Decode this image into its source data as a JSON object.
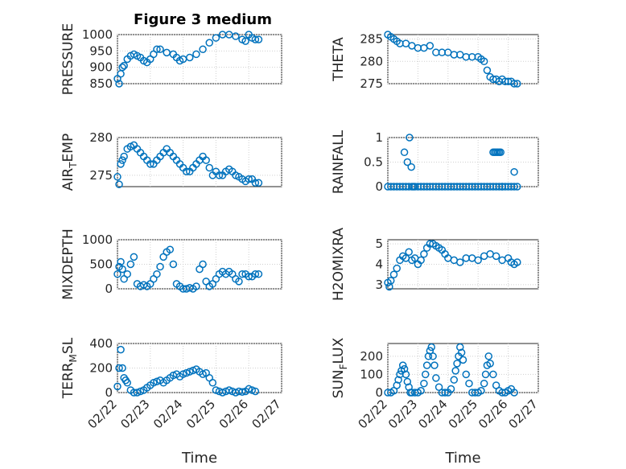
{
  "figure": {
    "title": "Figure 3 medium"
  },
  "colors": {
    "marker": "#0072BD",
    "axis": "#262626",
    "grid": "#cfcfcf"
  },
  "chart_data": [
    {
      "id": "pressure",
      "type": "scatter",
      "ylabel": "PRESSURE",
      "ylim": [
        850,
        1000
      ],
      "yticks": [
        850,
        900,
        950,
        1000
      ],
      "xlim": [
        0,
        5
      ],
      "x_ticks": [],
      "xlabel": "",
      "x": [
        0,
        0.05,
        0.1,
        0.15,
        0.2,
        0.3,
        0.4,
        0.5,
        0.6,
        0.7,
        0.8,
        0.9,
        1.0,
        1.1,
        1.2,
        1.3,
        1.5,
        1.7,
        1.8,
        1.9,
        2.0,
        2.2,
        2.4,
        2.6,
        2.8,
        3.0,
        3.2,
        3.4,
        3.6,
        3.8,
        3.9,
        4.0,
        4.1,
        4.2,
        4.3
      ],
      "y": [
        865,
        850,
        880,
        900,
        905,
        925,
        935,
        940,
        935,
        930,
        920,
        915,
        925,
        940,
        955,
        955,
        945,
        940,
        930,
        920,
        925,
        930,
        940,
        955,
        975,
        990,
        1000,
        1000,
        995,
        985,
        980,
        1000,
        990,
        985,
        985
      ]
    },
    {
      "id": "theta",
      "type": "scatter",
      "ylabel": "THETA",
      "ylim": [
        275,
        286
      ],
      "yticks": [
        275,
        280,
        285
      ],
      "xlim": [
        0,
        5
      ],
      "x_ticks": [],
      "xlabel": "",
      "x": [
        0,
        0.1,
        0.2,
        0.3,
        0.4,
        0.6,
        0.8,
        1.0,
        1.2,
        1.4,
        1.6,
        1.8,
        2.0,
        2.2,
        2.4,
        2.6,
        2.8,
        3.0,
        3.1,
        3.2,
        3.3,
        3.4,
        3.5,
        3.6,
        3.7,
        3.8,
        3.9,
        4.0,
        4.1,
        4.2,
        4.3
      ],
      "y": [
        286,
        285.5,
        285,
        284.5,
        284,
        284,
        283.5,
        283,
        283,
        283.5,
        282,
        282,
        282,
        281.5,
        281.5,
        281,
        281,
        281,
        280.5,
        280,
        278,
        276.5,
        276,
        276,
        275.5,
        276,
        275.5,
        275.5,
        275.5,
        275,
        275
      ]
    },
    {
      "id": "air_temp",
      "type": "scatter",
      "ylabel_main": "AIR",
      "ylabel_sub": "T",
      "ylabel_rest": "EMP",
      "ylim": [
        273.5,
        280
      ],
      "yticks": [
        275,
        280
      ],
      "xlim": [
        0,
        5
      ],
      "x_ticks": [],
      "xlabel": "",
      "x": [
        0,
        0.05,
        0.1,
        0.15,
        0.2,
        0.3,
        0.4,
        0.5,
        0.6,
        0.7,
        0.8,
        0.9,
        1.0,
        1.1,
        1.2,
        1.3,
        1.4,
        1.5,
        1.6,
        1.7,
        1.8,
        1.9,
        2.0,
        2.1,
        2.2,
        2.3,
        2.4,
        2.5,
        2.6,
        2.7,
        2.8,
        2.9,
        3.0,
        3.1,
        3.2,
        3.3,
        3.4,
        3.5,
        3.6,
        3.7,
        3.8,
        3.9,
        4.0,
        4.1,
        4.2,
        4.3
      ],
      "y": [
        274.8,
        273.8,
        276.5,
        277,
        277.5,
        278.5,
        278.8,
        279,
        278.5,
        278,
        277.5,
        277,
        276.5,
        276.5,
        277,
        277.5,
        278,
        278.5,
        278,
        277.5,
        277,
        276.5,
        276,
        275.5,
        275.5,
        276,
        276.5,
        277,
        277.5,
        277,
        276,
        275,
        275.5,
        275,
        275,
        275.5,
        275.8,
        275.5,
        275,
        274.8,
        274.5,
        274.2,
        274.5,
        274.5,
        274,
        274
      ]
    },
    {
      "id": "rainfall",
      "type": "scatter",
      "ylabel": "RAINFALL",
      "ylim": [
        0,
        1
      ],
      "yticks": [
        0,
        0.5,
        1
      ],
      "ytick_labels": [
        "0",
        "0.5",
        "1"
      ],
      "xlim": [
        0,
        5
      ],
      "x_ticks": [],
      "xlabel": "",
      "x": [
        0,
        0.1,
        0.2,
        0.3,
        0.4,
        0.5,
        0.6,
        0.7,
        0.8,
        0.9,
        1.0,
        1.1,
        1.2,
        1.3,
        1.4,
        1.5,
        1.6,
        1.7,
        1.8,
        1.9,
        2.0,
        2.1,
        2.2,
        2.3,
        2.4,
        2.5,
        2.6,
        2.7,
        2.8,
        2.9,
        3.0,
        3.1,
        3.2,
        3.3,
        3.4,
        3.5,
        3.6,
        3.7,
        3.8,
        3.9,
        4.0,
        4.1,
        4.2,
        4.3,
        0.55,
        0.65,
        0.72,
        0.78,
        0.85,
        3.5,
        3.55,
        3.6,
        3.65,
        3.7,
        3.75,
        3.8,
        4.2
      ],
      "y": [
        0,
        0,
        0,
        0,
        0,
        0,
        0,
        0,
        0,
        0,
        0,
        0,
        0,
        0,
        0,
        0,
        0,
        0,
        0,
        0,
        0,
        0,
        0,
        0,
        0,
        0,
        0,
        0,
        0,
        0,
        0,
        0,
        0,
        0,
        0,
        0,
        0,
        0,
        0,
        0,
        0,
        0,
        0,
        0,
        0.7,
        0.5,
        1.0,
        0.4,
        0,
        0.7,
        0.7,
        0.7,
        0.7,
        0.7,
        0.7,
        0,
        0.3
      ]
    },
    {
      "id": "mixdepth",
      "type": "scatter",
      "ylabel": "MIXDEPTH",
      "ylim": [
        0,
        1000
      ],
      "yticks": [
        0,
        500,
        1000
      ],
      "xlim": [
        0,
        5
      ],
      "x_ticks": [],
      "xlabel": "",
      "x": [
        0,
        0.05,
        0.1,
        0.15,
        0.2,
        0.3,
        0.4,
        0.5,
        0.6,
        0.7,
        0.8,
        0.9,
        1.0,
        1.1,
        1.2,
        1.3,
        1.4,
        1.5,
        1.6,
        1.7,
        1.8,
        1.9,
        2.0,
        2.1,
        2.2,
        2.3,
        2.4,
        2.5,
        2.6,
        2.7,
        2.8,
        2.9,
        3.0,
        3.1,
        3.2,
        3.3,
        3.4,
        3.5,
        3.6,
        3.7,
        3.8,
        3.9,
        4.0,
        4.1,
        4.2,
        4.3
      ],
      "y": [
        300,
        450,
        550,
        400,
        200,
        300,
        500,
        650,
        100,
        50,
        80,
        50,
        100,
        200,
        300,
        450,
        650,
        750,
        800,
        500,
        100,
        50,
        0,
        0,
        20,
        0,
        50,
        400,
        500,
        150,
        50,
        100,
        200,
        300,
        350,
        300,
        350,
        300,
        200,
        150,
        300,
        300,
        250,
        250,
        300,
        300
      ]
    },
    {
      "id": "h2omixra",
      "type": "scatter",
      "ylabel": "H2OMIXRA",
      "ylim": [
        2.8,
        5.2
      ],
      "yticks": [
        3,
        4,
        5
      ],
      "xlim": [
        0,
        5
      ],
      "x_ticks": [],
      "xlabel": "",
      "x": [
        0,
        0.05,
        0.1,
        0.2,
        0.3,
        0.4,
        0.5,
        0.6,
        0.7,
        0.8,
        0.9,
        1.0,
        1.1,
        1.2,
        1.3,
        1.4,
        1.5,
        1.6,
        1.7,
        1.8,
        1.9,
        2.0,
        2.2,
        2.4,
        2.6,
        2.8,
        3.0,
        3.2,
        3.4,
        3.6,
        3.8,
        4.0,
        4.1,
        4.2,
        4.3
      ],
      "y": [
        3.1,
        2.9,
        3.2,
        3.5,
        3.8,
        4.2,
        4.4,
        4.3,
        4.6,
        4.2,
        4.3,
        4.0,
        4.2,
        4.5,
        4.8,
        5.0,
        5.0,
        4.9,
        4.8,
        4.7,
        4.5,
        4.3,
        4.2,
        4.1,
        4.3,
        4.3,
        4.2,
        4.4,
        4.5,
        4.4,
        4.2,
        4.3,
        4.1,
        4.0,
        4.1
      ]
    },
    {
      "id": "terr_msl",
      "type": "scatter",
      "ylabel_main": "TERR",
      "ylabel_sub": "M",
      "ylabel_rest": "SL",
      "ylim": [
        0,
        400
      ],
      "yticks": [
        0,
        200,
        400
      ],
      "xlim": [
        0,
        5
      ],
      "xlabel": "Time",
      "x_ticks": [
        "02/22",
        "02/23",
        "02/24",
        "02/25",
        "02/26",
        "02/27"
      ],
      "x": [
        0,
        0.05,
        0.1,
        0.15,
        0.2,
        0.25,
        0.3,
        0.4,
        0.5,
        0.6,
        0.7,
        0.8,
        0.9,
        1.0,
        1.1,
        1.2,
        1.3,
        1.4,
        1.5,
        1.6,
        1.7,
        1.8,
        1.9,
        2.0,
        2.1,
        2.2,
        2.3,
        2.4,
        2.5,
        2.6,
        2.7,
        2.8,
        2.9,
        3.0,
        3.1,
        3.2,
        3.3,
        3.4,
        3.5,
        3.6,
        3.7,
        3.8,
        3.9,
        4.0,
        4.1,
        4.2
      ],
      "y": [
        50,
        200,
        350,
        200,
        120,
        100,
        80,
        20,
        0,
        0,
        10,
        20,
        40,
        60,
        80,
        90,
        100,
        80,
        100,
        120,
        140,
        150,
        130,
        150,
        160,
        170,
        180,
        190,
        170,
        150,
        160,
        120,
        80,
        20,
        10,
        0,
        10,
        20,
        10,
        0,
        10,
        5,
        10,
        30,
        20,
        10
      ]
    },
    {
      "id": "sun_flux",
      "type": "scatter",
      "ylabel_main": "SUN",
      "ylabel_sub": "F",
      "ylabel_rest": "LUX",
      "ylim": [
        0,
        270
      ],
      "yticks": [
        0,
        100,
        200
      ],
      "xlim": [
        0,
        5
      ],
      "xlabel": "Time",
      "x_ticks": [
        "02/22",
        "02/23",
        "02/24",
        "02/25",
        "02/26",
        "02/27"
      ],
      "x": [
        0,
        0.1,
        0.2,
        0.3,
        0.35,
        0.4,
        0.45,
        0.5,
        0.55,
        0.6,
        0.65,
        0.7,
        0.75,
        0.8,
        0.9,
        1.0,
        1.1,
        1.2,
        1.25,
        1.3,
        1.35,
        1.4,
        1.45,
        1.5,
        1.55,
        1.6,
        1.7,
        1.8,
        1.9,
        2.0,
        2.1,
        2.2,
        2.25,
        2.3,
        2.35,
        2.4,
        2.45,
        2.5,
        2.6,
        2.7,
        2.8,
        2.9,
        3.0,
        3.1,
        3.2,
        3.25,
        3.3,
        3.35,
        3.4,
        3.5,
        3.6,
        3.7,
        3.8,
        3.9,
        4.0,
        4.1,
        4.2
      ],
      "y": [
        0,
        0,
        10,
        40,
        70,
        100,
        120,
        150,
        130,
        100,
        60,
        30,
        0,
        0,
        0,
        0,
        10,
        50,
        100,
        150,
        200,
        230,
        250,
        200,
        150,
        80,
        30,
        0,
        0,
        0,
        20,
        70,
        120,
        160,
        200,
        250,
        220,
        180,
        100,
        50,
        0,
        0,
        0,
        10,
        50,
        100,
        150,
        200,
        160,
        100,
        40,
        10,
        0,
        0,
        10,
        20,
        0
      ]
    }
  ]
}
